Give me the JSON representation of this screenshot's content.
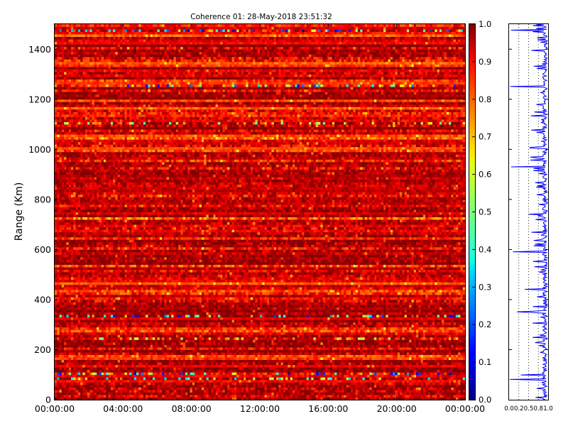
{
  "chart_data": [
    {
      "type": "heatmap",
      "title": "Coherence 01: 28-May-2018 23:51:32",
      "xlabel": "",
      "ylabel": "Range (Km)",
      "x_ticks": [
        "00:00:00",
        "04:00:00",
        "08:00:00",
        "12:00:00",
        "16:00:00",
        "20:00:00",
        "00:00:00"
      ],
      "y_ticks": [
        0,
        200,
        400,
        600,
        800,
        1000,
        1200,
        1400
      ],
      "ylim": [
        0,
        1500
      ],
      "colorbar": {
        "colormap": "jet",
        "range": [
          0.0,
          1.0
        ],
        "ticks": [
          "0.0",
          "0.1",
          "0.2",
          "0.3",
          "0.4",
          "0.5",
          "0.6",
          "0.7",
          "0.8",
          "0.9",
          "1.0"
        ]
      },
      "dominant_value_range": [
        0.7,
        1.0
      ],
      "low_value_range_km": [
        {
          "range_km": 1475,
          "min_value": 0.05
        },
        {
          "range_km": 1250,
          "min_value": 0.1
        },
        {
          "range_km": 1105,
          "min_value": 0.45
        },
        {
          "range_km": 330,
          "min_value": 0.1
        },
        {
          "range_km": 240,
          "min_value": 0.5
        },
        {
          "range_km": 100,
          "min_value": 0.05
        },
        {
          "range_km": 80,
          "min_value": 0.3
        }
      ]
    },
    {
      "type": "line",
      "title": "",
      "xlabel": "",
      "ylabel": "",
      "x_ticks": [
        "0.0",
        "0.2",
        "0.5",
        "0.8",
        "1.0"
      ],
      "xlim": [
        0,
        1
      ],
      "ylim": [
        0,
        1500
      ],
      "grid": "dotted vertical",
      "series_color": "#0000ff",
      "typical_value_range": [
        0.8,
        1.0
      ],
      "dips": [
        {
          "range_km": 1475,
          "value": 0.05
        },
        {
          "range_km": 1250,
          "value": 0.03
        },
        {
          "range_km": 1180,
          "value": 0.7
        },
        {
          "range_km": 930,
          "value": 0.05
        },
        {
          "range_km": 740,
          "value": 0.5
        },
        {
          "range_km": 590,
          "value": 0.1
        },
        {
          "range_km": 440,
          "value": 0.4
        },
        {
          "range_km": 350,
          "value": 0.2
        },
        {
          "range_km": 250,
          "value": 0.6
        },
        {
          "range_km": 100,
          "value": 0.3
        },
        {
          "range_km": 80,
          "value": 0.02
        }
      ]
    }
  ]
}
